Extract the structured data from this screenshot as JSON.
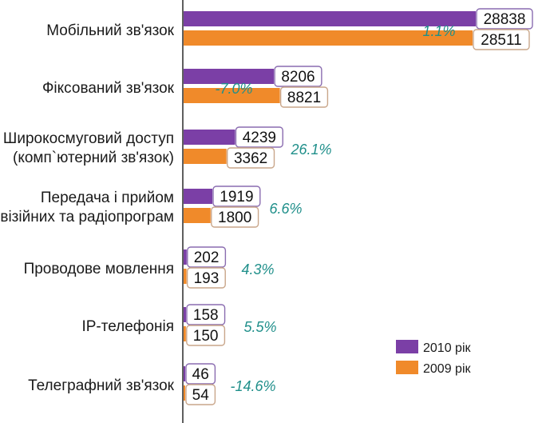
{
  "chart_data": {
    "type": "bar",
    "orientation": "horizontal",
    "title": "",
    "xlabel": "",
    "ylabel": "",
    "grid": false,
    "legend_position": "bottom-right",
    "categories": [
      [
        "Мобільний зв'язок"
      ],
      [
        "Фіксований зв'язок"
      ],
      [
        "Широкосмуговий доступ",
        "(комп`ютерний зв'язок)"
      ],
      [
        "Передача і прийом",
        "телевізійних та радіопрограм"
      ],
      [
        "Проводове мовлення"
      ],
      [
        "IP-телефонія"
      ],
      [
        "Телеграфний зв'язок"
      ]
    ],
    "series": [
      {
        "name": "2010 рік",
        "color": "#7b3fa6",
        "values": [
          28838,
          8206,
          4239,
          1919,
          202,
          158,
          46
        ]
      },
      {
        "name": "2009 рік",
        "color": "#f08a2a",
        "values": [
          28511,
          8821,
          3362,
          1800,
          193,
          150,
          54
        ]
      }
    ],
    "changes": [
      "1.1%",
      "-7.0%",
      "26.1%",
      "6.6%",
      "4.3%",
      "5.5%",
      "-14.6%"
    ]
  }
}
